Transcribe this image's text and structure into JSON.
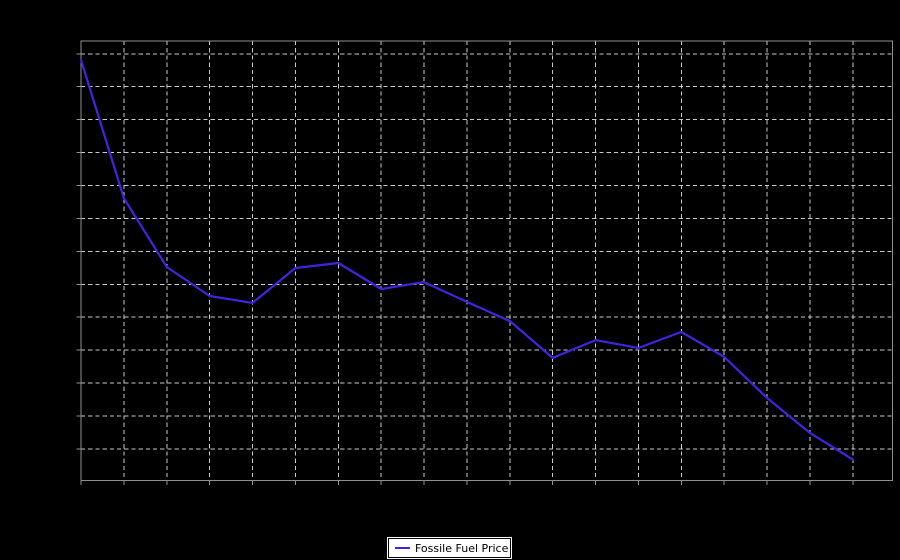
{
  "figure": {
    "background": "#000000"
  },
  "legend": {
    "label": "Fossile Fuel Price",
    "position": "bottom-center",
    "background": "#ffffff",
    "border_color": "#000000",
    "text_color": "#000000"
  },
  "chart_data": {
    "type": "line",
    "title": "",
    "xlabel": "",
    "ylabel": "",
    "grid": true,
    "grid_style": "dashed",
    "legend_position": "bottom-center",
    "axis_tick_labels_visible": false,
    "units_note": "no axis tick labels visible; y values estimated in horizontal-gridline units above the bottom axis, x is point index",
    "colors": {
      "background": "#000000",
      "line": "#4423e0",
      "grid": "#c9c9c9",
      "border": "#8f8f8f",
      "tick": "#8f8f8f"
    },
    "x": [
      0,
      1,
      2,
      3,
      4,
      5,
      6,
      7,
      8,
      9,
      10,
      11,
      12,
      13,
      14,
      15,
      16,
      17,
      18
    ],
    "series": [
      {
        "name": "Fossile Fuel Price",
        "values": [
          12.78,
          8.58,
          6.49,
          5.61,
          5.4,
          6.46,
          6.61,
          5.82,
          6.03,
          5.43,
          4.85,
          3.73,
          4.27,
          4.03,
          4.52,
          3.76,
          2.51,
          1.45,
          0.64
        ]
      }
    ],
    "xlim_px_note": "data spans left plot edge to one gridline short of right edge",
    "x_gridline_count": 18,
    "y_gridline_count": 13
  }
}
